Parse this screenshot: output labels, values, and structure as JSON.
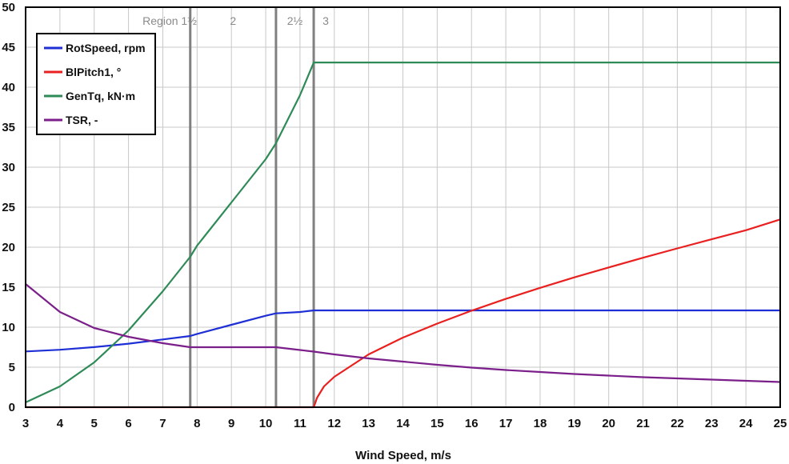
{
  "chart_data": {
    "type": "line",
    "title": "",
    "xlabel": "Wind Speed, m/s",
    "ylabel": "",
    "xlim": [
      3,
      25
    ],
    "ylim": [
      0,
      50
    ],
    "x_ticks": [
      3,
      4,
      5,
      6,
      7,
      8,
      9,
      10,
      11,
      12,
      13,
      14,
      15,
      16,
      17,
      18,
      19,
      20,
      21,
      22,
      23,
      24,
      25
    ],
    "y_ticks": [
      0,
      5,
      10,
      15,
      20,
      25,
      30,
      35,
      40,
      45,
      50
    ],
    "x_tick_labels": [
      "3",
      "4",
      "5",
      "6",
      "7",
      "8",
      "9",
      "10",
      "11",
      "12",
      "13",
      "14",
      "15",
      "16",
      "17",
      "18",
      "19",
      "20",
      "21",
      "22",
      "23",
      "24",
      "25"
    ],
    "y_tick_labels": [
      "0",
      "5",
      "10",
      "15",
      "20",
      "25",
      "30",
      "35",
      "40",
      "45",
      "50"
    ],
    "grid": true,
    "legend_position": "top-left",
    "series": [
      {
        "name": "RotSpeed, rpm",
        "color": "#1f2fd6",
        "points": [
          [
            3,
            6.97
          ],
          [
            4,
            7.18
          ],
          [
            5,
            7.51
          ],
          [
            6,
            7.94
          ],
          [
            7,
            8.47
          ],
          [
            7.8,
            8.9
          ],
          [
            8,
            9.16
          ],
          [
            9,
            10.3
          ],
          [
            10,
            11.43
          ],
          [
            10.3,
            11.73
          ],
          [
            11,
            11.9
          ],
          [
            11.4,
            12.1
          ],
          [
            12,
            12.1
          ],
          [
            13,
            12.1
          ],
          [
            14,
            12.1
          ],
          [
            15,
            12.1
          ],
          [
            16,
            12.1
          ],
          [
            17,
            12.1
          ],
          [
            18,
            12.1
          ],
          [
            19,
            12.1
          ],
          [
            20,
            12.1
          ],
          [
            21,
            12.1
          ],
          [
            22,
            12.1
          ],
          [
            23,
            12.1
          ],
          [
            24,
            12.1
          ],
          [
            25,
            12.1
          ]
        ]
      },
      {
        "name": "BlPitch1, °",
        "color": "#e8201f",
        "points": [
          [
            3,
            0
          ],
          [
            4,
            0
          ],
          [
            5,
            0
          ],
          [
            6,
            0
          ],
          [
            7,
            0
          ],
          [
            8,
            0
          ],
          [
            9,
            0
          ],
          [
            10,
            0
          ],
          [
            11,
            0
          ],
          [
            11.4,
            0
          ],
          [
            11.5,
            1.2
          ],
          [
            11.7,
            2.6
          ],
          [
            12,
            3.8
          ],
          [
            13,
            6.6
          ],
          [
            14,
            8.7
          ],
          [
            15,
            10.45
          ],
          [
            16,
            12.06
          ],
          [
            17,
            13.54
          ],
          [
            18,
            14.92
          ],
          [
            19,
            16.23
          ],
          [
            20,
            17.47
          ],
          [
            21,
            18.68
          ],
          [
            22,
            19.85
          ],
          [
            23,
            21.0
          ],
          [
            24,
            22.12
          ],
          [
            25,
            23.47
          ]
        ]
      },
      {
        "name": "GenTq, kN·m",
        "color": "#2e8b57",
        "points": [
          [
            3,
            0.6
          ],
          [
            4,
            2.6
          ],
          [
            5,
            5.6
          ],
          [
            6,
            9.6
          ],
          [
            7,
            14.5
          ],
          [
            7.8,
            18.8
          ],
          [
            8,
            20.2
          ],
          [
            9,
            25.6
          ],
          [
            10,
            31.0
          ],
          [
            10.3,
            33.0
          ],
          [
            11,
            39.0
          ],
          [
            11.4,
            43.09
          ],
          [
            12,
            43.09
          ],
          [
            13,
            43.09
          ],
          [
            14,
            43.09
          ],
          [
            15,
            43.09
          ],
          [
            16,
            43.09
          ],
          [
            17,
            43.09
          ],
          [
            18,
            43.09
          ],
          [
            19,
            43.09
          ],
          [
            20,
            43.09
          ],
          [
            21,
            43.09
          ],
          [
            22,
            43.09
          ],
          [
            23,
            43.09
          ],
          [
            24,
            43.09
          ],
          [
            25,
            43.09
          ]
        ]
      },
      {
        "name": "TSR, -",
        "color": "#7b1f8a",
        "points": [
          [
            3,
            15.4
          ],
          [
            4,
            11.9
          ],
          [
            5,
            9.9
          ],
          [
            6,
            8.8
          ],
          [
            7,
            8.0
          ],
          [
            7.8,
            7.5
          ],
          [
            8,
            7.5
          ],
          [
            9,
            7.5
          ],
          [
            10,
            7.5
          ],
          [
            10.3,
            7.5
          ],
          [
            11,
            7.15
          ],
          [
            11.4,
            6.95
          ],
          [
            12,
            6.6
          ],
          [
            13,
            6.1
          ],
          [
            14,
            5.7
          ],
          [
            15,
            5.3
          ],
          [
            16,
            4.95
          ],
          [
            17,
            4.65
          ],
          [
            18,
            4.4
          ],
          [
            19,
            4.15
          ],
          [
            20,
            3.95
          ],
          [
            21,
            3.75
          ],
          [
            22,
            3.6
          ],
          [
            23,
            3.45
          ],
          [
            24,
            3.3
          ],
          [
            25,
            3.15
          ]
        ]
      }
    ],
    "region_boundaries": [
      7.8,
      10.3,
      11.4
    ],
    "region_labels": [
      {
        "text": "Region 1½",
        "x": 7.2
      },
      {
        "text": "2",
        "x": 9.05
      },
      {
        "text": "2½",
        "x": 10.85
      },
      {
        "text": "3",
        "x": 11.75
      }
    ]
  }
}
